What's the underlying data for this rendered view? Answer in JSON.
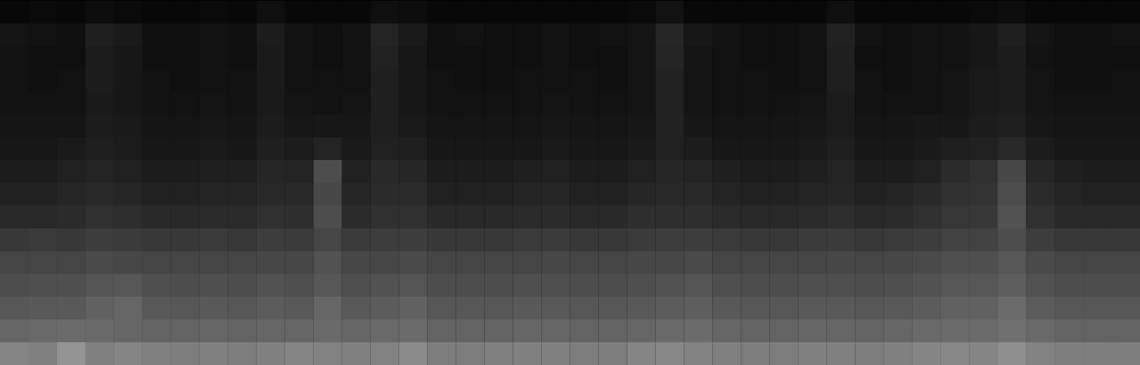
{
  "chart_data": {
    "type": "heatmap",
    "tick_labels": false,
    "zlim": [
      0,
      100
    ],
    "cells": [
      [
        3,
        4,
        3,
        5,
        4,
        3,
        3,
        4,
        3,
        6,
        3,
        3,
        3,
        6,
        5,
        3,
        3,
        3,
        3,
        3,
        3,
        3,
        4,
        7,
        3,
        3,
        3,
        3,
        3,
        6,
        3,
        3,
        3,
        3,
        4,
        5,
        3,
        3,
        3,
        3
      ],
      [
        8,
        7,
        6,
        12,
        10,
        6,
        6,
        7,
        6,
        11,
        7,
        6,
        7,
        14,
        10,
        6,
        7,
        6,
        6,
        7,
        6,
        7,
        8,
        15,
        9,
        7,
        6,
        6,
        7,
        13,
        7,
        6,
        7,
        7,
        9,
        12,
        8,
        6,
        6,
        7
      ],
      [
        7,
        6,
        6,
        11,
        9,
        6,
        6,
        7,
        6,
        10,
        7,
        6,
        7,
        13,
        9,
        6,
        6,
        6,
        6,
        7,
        6,
        6,
        8,
        14,
        8,
        7,
        6,
        6,
        7,
        12,
        6,
        6,
        7,
        7,
        9,
        11,
        7,
        6,
        6,
        6
      ],
      [
        7,
        6,
        7,
        11,
        9,
        7,
        6,
        7,
        7,
        10,
        7,
        7,
        7,
        12,
        9,
        7,
        6,
        6,
        7,
        7,
        7,
        6,
        8,
        13,
        8,
        7,
        7,
        6,
        7,
        12,
        7,
        6,
        7,
        8,
        10,
        11,
        8,
        6,
        6,
        7
      ],
      [
        7,
        7,
        7,
        10,
        9,
        7,
        7,
        8,
        7,
        10,
        8,
        7,
        8,
        12,
        9,
        7,
        7,
        7,
        7,
        8,
        7,
        7,
        8,
        13,
        8,
        7,
        7,
        7,
        8,
        11,
        7,
        7,
        7,
        8,
        10,
        11,
        8,
        7,
        7,
        7
      ],
      [
        8,
        8,
        8,
        11,
        10,
        8,
        8,
        9,
        8,
        11,
        9,
        9,
        9,
        12,
        10,
        8,
        8,
        8,
        8,
        9,
        8,
        8,
        9,
        13,
        9,
        8,
        8,
        8,
        9,
        11,
        8,
        8,
        9,
        9,
        11,
        12,
        9,
        8,
        8,
        8
      ],
      [
        9,
        9,
        10,
        12,
        11,
        9,
        9,
        10,
        9,
        12,
        11,
        14,
        10,
        13,
        12,
        9,
        9,
        9,
        9,
        10,
        9,
        9,
        10,
        13,
        11,
        9,
        9,
        9,
        10,
        12,
        9,
        9,
        10,
        12,
        13,
        16,
        11,
        9,
        9,
        9
      ],
      [
        11,
        11,
        13,
        14,
        13,
        11,
        11,
        12,
        12,
        15,
        14,
        30,
        13,
        16,
        15,
        11,
        11,
        11,
        12,
        13,
        11,
        11,
        13,
        15,
        14,
        12,
        11,
        11,
        12,
        14,
        11,
        11,
        13,
        17,
        19,
        28,
        15,
        12,
        11,
        11
      ],
      [
        13,
        13,
        15,
        16,
        15,
        13,
        13,
        14,
        14,
        16,
        16,
        28,
        15,
        17,
        17,
        13,
        13,
        13,
        14,
        15,
        13,
        13,
        15,
        16,
        16,
        14,
        13,
        13,
        14,
        15,
        13,
        14,
        16,
        19,
        20,
        30,
        17,
        14,
        13,
        13
      ],
      [
        16,
        16,
        17,
        19,
        18,
        16,
        16,
        17,
        17,
        19,
        18,
        30,
        17,
        19,
        19,
        16,
        16,
        16,
        17,
        17,
        16,
        16,
        18,
        18,
        18,
        17,
        16,
        16,
        17,
        18,
        16,
        17,
        19,
        21,
        22,
        32,
        19,
        16,
        16,
        16
      ],
      [
        22,
        23,
        22,
        24,
        23,
        22,
        22,
        23,
        22,
        24,
        23,
        27,
        23,
        24,
        24,
        22,
        22,
        22,
        23,
        23,
        22,
        22,
        23,
        24,
        24,
        23,
        22,
        22,
        23,
        23,
        22,
        23,
        24,
        26,
        26,
        30,
        24,
        22,
        22,
        22
      ],
      [
        27,
        27,
        27,
        29,
        28,
        27,
        27,
        27,
        27,
        28,
        28,
        32,
        28,
        28,
        29,
        27,
        27,
        27,
        27,
        28,
        27,
        27,
        28,
        28,
        29,
        27,
        27,
        27,
        27,
        28,
        27,
        28,
        29,
        31,
        31,
        34,
        29,
        27,
        27,
        27
      ],
      [
        30,
        31,
        31,
        33,
        34,
        31,
        30,
        31,
        30,
        32,
        31,
        34,
        31,
        32,
        33,
        30,
        30,
        30,
        31,
        31,
        30,
        30,
        31,
        32,
        33,
        31,
        30,
        30,
        31,
        31,
        30,
        31,
        32,
        34,
        34,
        37,
        32,
        30,
        30,
        30
      ],
      [
        34,
        35,
        35,
        38,
        40,
        35,
        34,
        35,
        34,
        36,
        35,
        40,
        35,
        36,
        38,
        34,
        34,
        34,
        35,
        35,
        34,
        34,
        35,
        36,
        37,
        35,
        34,
        34,
        35,
        35,
        34,
        35,
        36,
        38,
        38,
        42,
        36,
        34,
        34,
        34
      ],
      [
        40,
        41,
        42,
        41,
        40,
        39,
        39,
        40,
        39,
        40,
        40,
        41,
        40,
        41,
        42,
        39,
        39,
        39,
        40,
        40,
        39,
        39,
        40,
        41,
        42,
        40,
        39,
        39,
        40,
        40,
        39,
        40,
        41,
        42,
        42,
        44,
        41,
        39,
        39,
        39
      ],
      [
        52,
        50,
        58,
        50,
        52,
        50,
        49,
        50,
        49,
        50,
        52,
        51,
        50,
        51,
        54,
        49,
        49,
        50,
        50,
        50,
        49,
        49,
        52,
        53,
        51,
        50,
        49,
        49,
        50,
        50,
        49,
        50,
        52,
        53,
        52,
        56,
        51,
        49,
        49,
        49
      ]
    ]
  }
}
